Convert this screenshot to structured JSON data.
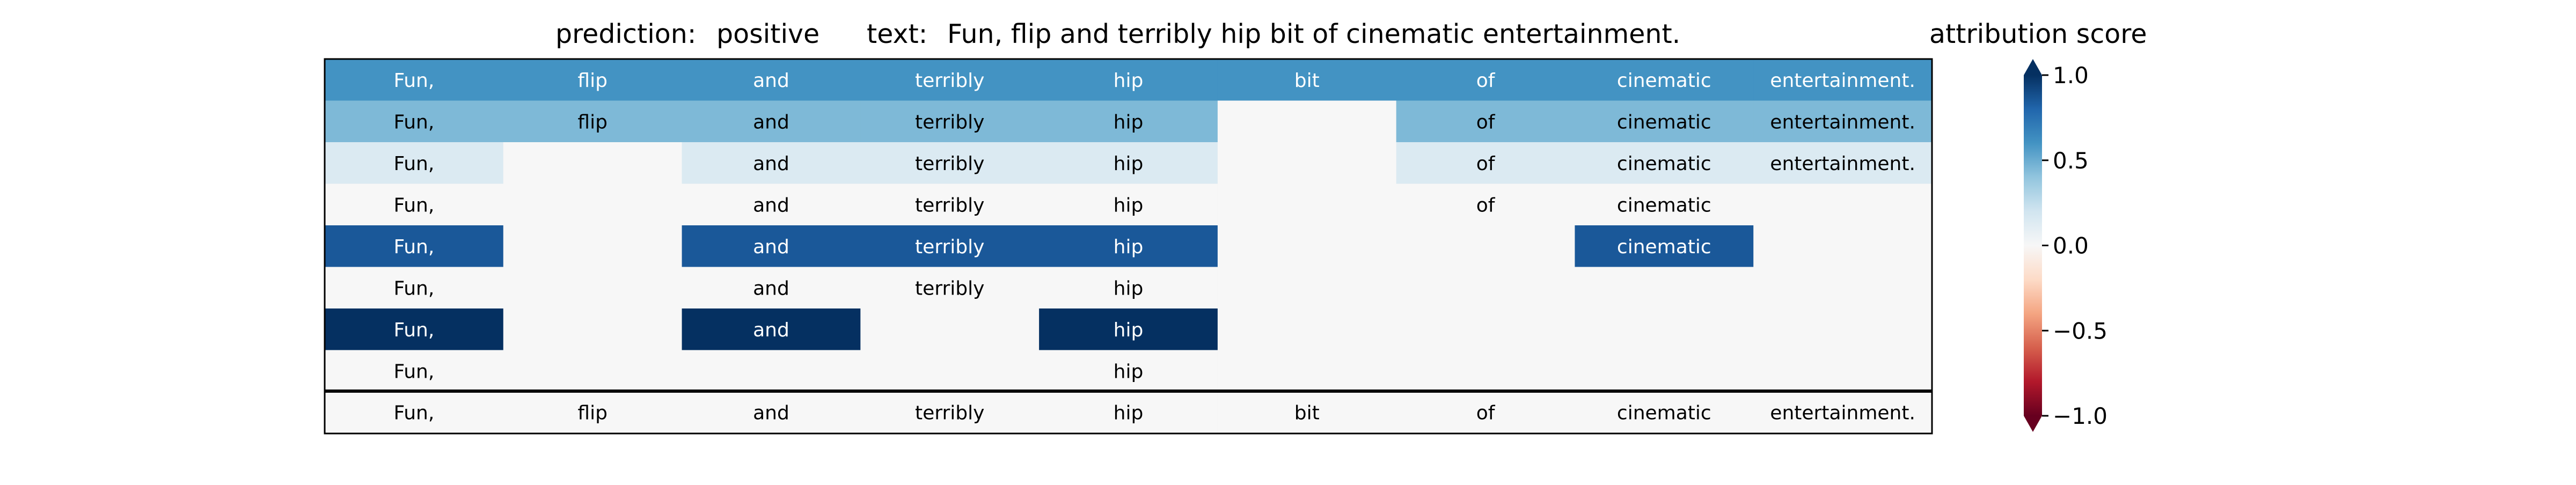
{
  "chart_data": {
    "type": "heatmap",
    "title": {
      "prediction_label": "prediction:",
      "prediction_value": "positive",
      "text_label": "text:",
      "text_value": "Fun, flip and terribly hip bit of cinematic entertainment."
    },
    "tokens": [
      "Fun,",
      "flip",
      "and",
      "terribly",
      "hip",
      "bit",
      "of",
      "cinematic",
      "entertainment."
    ],
    "rows": [
      {
        "words": [
          "Fun,",
          "flip",
          "and",
          "terribly",
          "hip",
          "bit",
          "of",
          "cinematic",
          "entertainment."
        ],
        "scores": [
          0.6,
          0.6,
          0.6,
          0.6,
          0.6,
          0.6,
          0.6,
          0.6,
          0.6
        ]
      },
      {
        "words": [
          "Fun,",
          "flip",
          "and",
          "terribly",
          "hip",
          "",
          "of",
          "cinematic",
          "entertainment."
        ],
        "scores": [
          0.45,
          0.45,
          0.45,
          0.45,
          0.45,
          0.0,
          0.45,
          0.45,
          0.45
        ]
      },
      {
        "words": [
          "Fun,",
          "",
          "and",
          "terribly",
          "hip",
          "",
          "of",
          "cinematic",
          "entertainment."
        ],
        "scores": [
          0.15,
          0.0,
          0.15,
          0.15,
          0.15,
          0.0,
          0.15,
          0.15,
          0.15
        ]
      },
      {
        "words": [
          "Fun,",
          "",
          "and",
          "terribly",
          "hip",
          "",
          "of",
          "cinematic",
          ""
        ],
        "scores": [
          0.0,
          0.0,
          0.0,
          0.0,
          0.0,
          0.0,
          0.0,
          0.0,
          0.0
        ]
      },
      {
        "words": [
          "Fun,",
          "",
          "and",
          "terribly",
          "hip",
          "",
          "",
          "cinematic",
          ""
        ],
        "scores": [
          0.85,
          0.0,
          0.85,
          0.85,
          0.85,
          0.0,
          0.0,
          0.85,
          0.0
        ]
      },
      {
        "words": [
          "Fun,",
          "",
          "and",
          "terribly",
          "hip",
          "",
          "",
          "",
          ""
        ],
        "scores": [
          0.0,
          0.0,
          0.0,
          0.0,
          0.0,
          0.0,
          0.0,
          0.0,
          0.0
        ]
      },
      {
        "words": [
          "Fun,",
          "",
          "and",
          "",
          "hip",
          "",
          "",
          "",
          ""
        ],
        "scores": [
          1.0,
          0.0,
          1.0,
          0.0,
          1.0,
          0.0,
          0.0,
          0.0,
          0.0
        ]
      },
      {
        "words": [
          "Fun,",
          "",
          "",
          "",
          "hip",
          "",
          "",
          "",
          ""
        ],
        "scores": [
          0.0,
          0.0,
          0.0,
          0.0,
          0.0,
          0.0,
          0.0,
          0.0,
          0.0
        ]
      }
    ],
    "reference_row": {
      "words": [
        "Fun,",
        "flip",
        "and",
        "terribly",
        "hip",
        "bit",
        "of",
        "cinematic",
        "entertainment."
      ]
    },
    "colorbar": {
      "label": "attribution score",
      "colormap": "RdBu",
      "range": [
        -1.0,
        1.0
      ],
      "extend": "both",
      "ticks": [
        1.0,
        0.5,
        0.0,
        -0.5,
        -1.0
      ],
      "tick_labels": [
        "1.0",
        "0.5",
        "0.0",
        "−0.5",
        "−1.0"
      ]
    }
  }
}
